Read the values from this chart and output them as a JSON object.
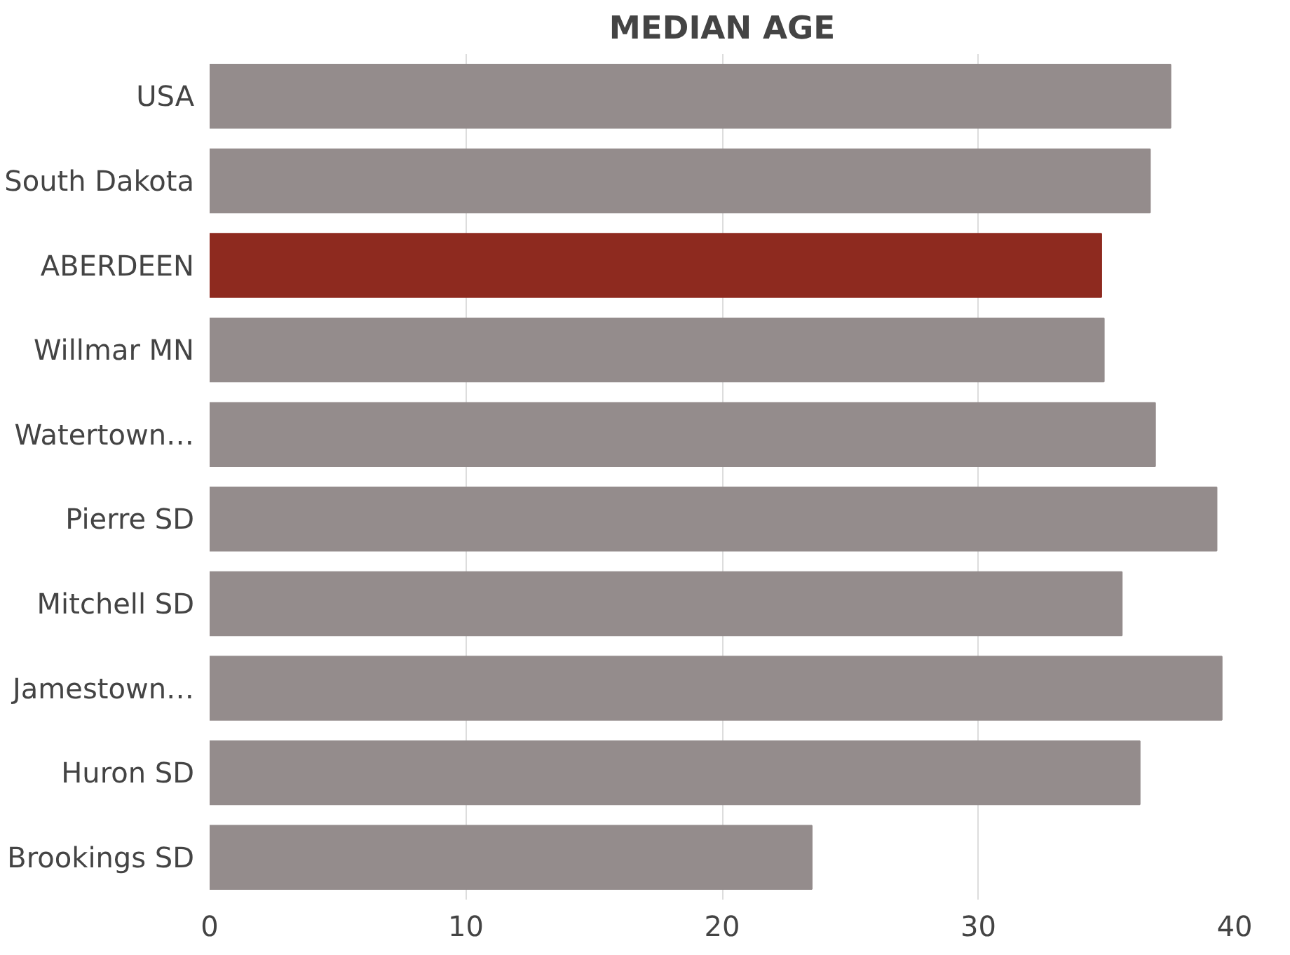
{
  "chart_data": {
    "type": "bar",
    "orientation": "horizontal",
    "title": "MEDIAN AGE",
    "categories": [
      "USA",
      "South Dakota",
      "ABERDEEN",
      "Willmar MN",
      "Watertown…",
      "Pierre SD",
      "Mitchell SD",
      "Jamestown…",
      "Huron SD",
      "Brookings SD"
    ],
    "values": [
      37.5,
      36.7,
      34.8,
      34.9,
      36.9,
      39.3,
      35.6,
      39.5,
      36.3,
      23.5
    ],
    "colors": [
      "#948c8c",
      "#948c8c",
      "#8e2a1f",
      "#948c8c",
      "#948c8c",
      "#948c8c",
      "#948c8c",
      "#948c8c",
      "#948c8c",
      "#948c8c"
    ],
    "xlim": [
      0,
      40
    ],
    "xticks": [
      0,
      10,
      20,
      30,
      40
    ],
    "grid": "x"
  }
}
